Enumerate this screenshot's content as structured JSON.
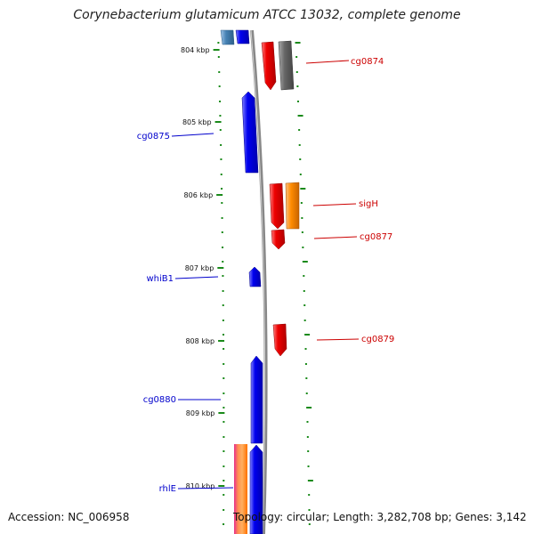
{
  "title": "Corynebacterium glutamicum ATCC 13032, complete genome",
  "footer": {
    "accession": "Accession: NC_006958",
    "summary": "Topology: circular; Length: 3,282,708 bp; Genes: 3,142"
  },
  "colors": {
    "forward_gene": "#1010ee",
    "reverse_gene": "#ee1010",
    "backbone": "#888888",
    "tick": "#1a8a1a",
    "orange_gene": "#ff8c00",
    "grey_gene": "#666666",
    "steelblue_gene": "#4682b4"
  },
  "ticks": [
    {
      "label": "804 kbp"
    },
    {
      "label": "805 kbp"
    },
    {
      "label": "806 kbp"
    },
    {
      "label": "807 kbp"
    },
    {
      "label": "808 kbp"
    },
    {
      "label": "809 kbp"
    },
    {
      "label": "810 kbp"
    }
  ],
  "gene_labels": [
    {
      "name": "cg0874",
      "strand": "reverse"
    },
    {
      "name": "cg0875",
      "strand": "forward"
    },
    {
      "name": "sigH",
      "strand": "reverse"
    },
    {
      "name": "cg0877",
      "strand": "reverse"
    },
    {
      "name": "whiB1",
      "strand": "forward"
    },
    {
      "name": "cg0879",
      "strand": "reverse"
    },
    {
      "name": "cg0880",
      "strand": "forward"
    },
    {
      "name": "rhlE",
      "strand": "forward"
    }
  ]
}
